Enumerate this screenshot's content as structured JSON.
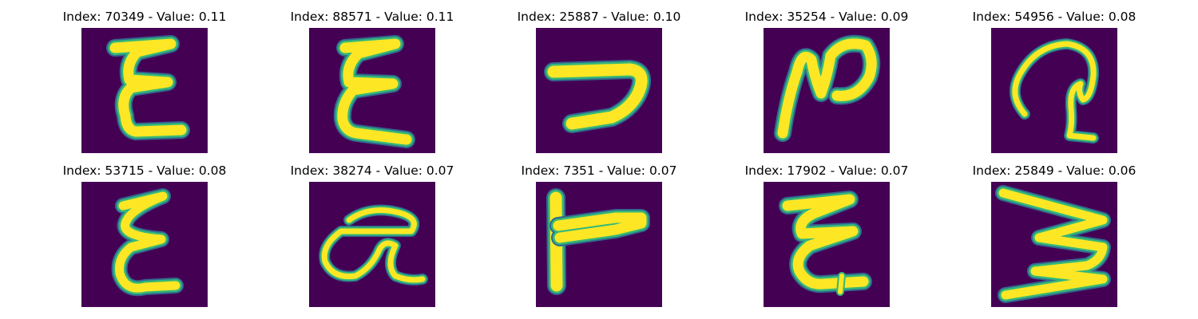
{
  "colors": {
    "background": "#440154",
    "stroke_outer": "#31688e",
    "stroke_mid": "#35b779",
    "stroke_core": "#fde725"
  },
  "panels": [
    {
      "title": "Index: 70349 - Value: 0.11",
      "glyph": "epsilon-like-curly-e"
    },
    {
      "title": "Index: 88571 - Value: 0.11",
      "glyph": "epsilon-like-curly-e"
    },
    {
      "title": "Index: 25887 - Value: 0.10",
      "glyph": "reversed-hook"
    },
    {
      "title": "Index: 35254 - Value: 0.09",
      "glyph": "looped-n"
    },
    {
      "title": "Index: 54956 - Value: 0.08",
      "glyph": "looped-q"
    },
    {
      "title": "Index: 53715 - Value: 0.08",
      "glyph": "epsilon-like-curly-e"
    },
    {
      "title": "Index: 38274 - Value: 0.07",
      "glyph": "loop-alpha"
    },
    {
      "title": "Index: 7351 - Value: 0.07",
      "glyph": "t-shape"
    },
    {
      "title": "Index: 17902 - Value: 0.07",
      "glyph": "epsilon-like-curly-e"
    },
    {
      "title": "Index: 25849 - Value: 0.06",
      "glyph": "zigzag-e"
    }
  ]
}
